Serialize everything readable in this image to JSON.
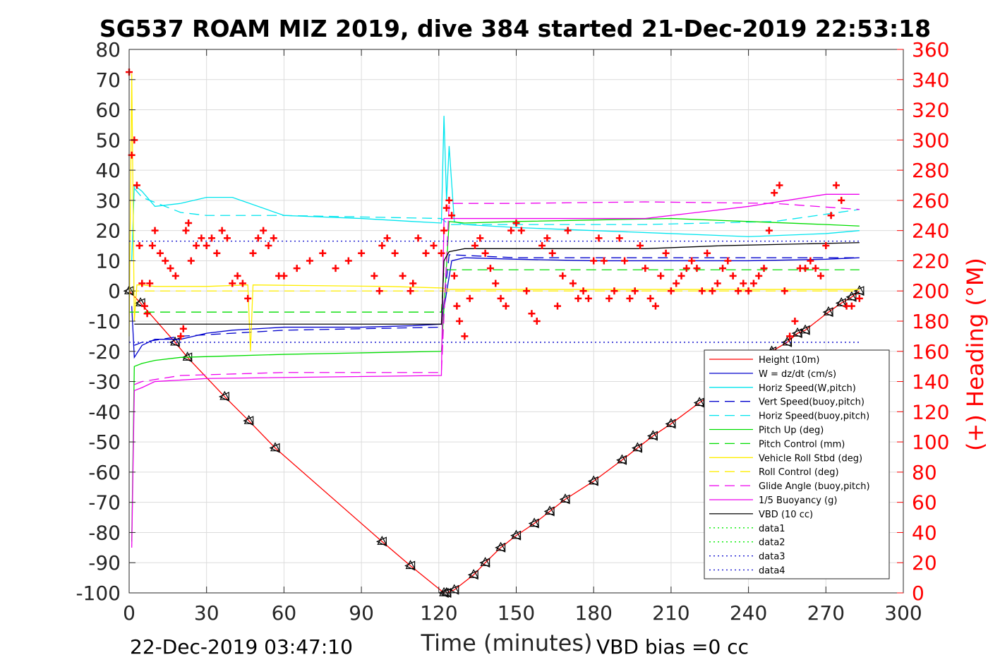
{
  "chart_data": {
    "type": "line",
    "title": "SG537 ROAM MIZ 2019, dive 384 started 21-Dec-2019 22:53:18",
    "xlabel": "Time (minutes)",
    "ylabel": "",
    "y2label": "(+) Heading (°M)",
    "xlim": [
      0,
      300
    ],
    "ylim": [
      -100,
      80
    ],
    "y2lim": [
      0,
      360
    ],
    "xticks": [
      0,
      30,
      60,
      90,
      120,
      150,
      180,
      210,
      240,
      270,
      300
    ],
    "yticks": [
      -100,
      -90,
      -80,
      -70,
      -60,
      -50,
      -40,
      -30,
      -20,
      -10,
      0,
      10,
      20,
      30,
      40,
      50,
      60,
      70,
      80
    ],
    "y2ticks": [
      0,
      20,
      40,
      60,
      80,
      100,
      120,
      140,
      160,
      180,
      200,
      220,
      240,
      260,
      280,
      300,
      320,
      340,
      360
    ],
    "grid": true,
    "legend_position": "lower-right",
    "footer_left": "22-Dec-2019 03:47:10",
    "footer_right": "VBD bias =0 cc",
    "series": [
      {
        "name": "Height (10m)",
        "color": "#ff0000",
        "style": "solid",
        "marker": "triangle",
        "x": [
          0,
          4.4,
          17.8,
          22.6,
          37,
          46.4,
          56.6,
          98,
          109,
          122,
          123,
          126,
          133.5,
          138,
          144,
          150,
          157,
          163,
          169,
          180,
          191,
          197,
          203,
          210,
          221,
          233,
          240,
          249,
          255,
          259,
          262,
          271,
          276,
          280,
          283
        ],
        "y": [
          0,
          -4,
          -17,
          -22,
          -35,
          -43,
          -52,
          -83,
          -91,
          -100,
          -100,
          -99,
          -94,
          -90,
          -85,
          -81,
          -77,
          -73,
          -69,
          -63,
          -56,
          -52,
          -48,
          -44,
          -37,
          -30,
          -26,
          -20,
          -17,
          -14,
          -13,
          -7,
          -4,
          -2,
          0
        ]
      },
      {
        "name": "W = dz/dt (cm/s)",
        "color": "#0000cc",
        "style": "solid",
        "x": [
          1,
          2,
          5,
          10,
          20,
          30,
          40,
          60,
          90,
          110,
          121,
          125,
          130,
          150,
          180,
          210,
          240,
          270,
          283
        ],
        "y": [
          -5,
          -22,
          -18,
          -16,
          -16,
          -14,
          -13,
          -12,
          -12,
          -11.5,
          -11,
          10,
          11,
          10.5,
          10,
          10,
          10,
          10.5,
          11
        ]
      },
      {
        "name": "Horiz Speed(W,pitch)",
        "color": "#00e5ee",
        "style": "solid",
        "x": [
          1,
          2,
          5,
          10,
          20,
          30,
          40,
          60,
          90,
          110,
          121,
          122,
          123,
          124,
          126,
          130,
          150,
          180,
          210,
          240,
          270,
          283
        ],
        "y": [
          10,
          35,
          33,
          28,
          29,
          31,
          31,
          25,
          24,
          23,
          22.5,
          58,
          30,
          48,
          23,
          22,
          21,
          20,
          19,
          18,
          19,
          20
        ]
      },
      {
        "name": "Vert Speed(buoy,pitch)",
        "color": "#0000cc",
        "style": "dashed",
        "x": [
          2,
          5,
          20,
          60,
          121,
          124,
          150,
          200,
          250,
          283
        ],
        "y": [
          -18,
          -17,
          -15,
          -13,
          -12,
          12,
          11,
          11,
          11,
          11
        ]
      },
      {
        "name": "Horiz Speed(buoy,pitch)",
        "color": "#00e5ee",
        "style": "dashed",
        "x": [
          2,
          5,
          20,
          30,
          60,
          121,
          124,
          150,
          200,
          250,
          283
        ],
        "y": [
          34,
          31,
          26,
          25,
          25,
          24,
          22,
          22,
          22,
          23,
          27
        ]
      },
      {
        "name": "Pitch Up (deg)",
        "color": "#00dd00",
        "style": "solid",
        "x": [
          1,
          2,
          5,
          10,
          20,
          40,
          60,
          90,
          121,
          124,
          130,
          150,
          180,
          210,
          240,
          270,
          283
        ],
        "y": [
          -83,
          -25,
          -24,
          -23,
          -22,
          -21.5,
          -21,
          -20.5,
          -20,
          23,
          22.5,
          23,
          23.5,
          24,
          23,
          22,
          21.5
        ]
      },
      {
        "name": "Pitch Control (mm)",
        "color": "#00dd00",
        "style": "dashed",
        "x": [
          0,
          121,
          122,
          283
        ],
        "y": [
          -7,
          -7,
          7,
          7
        ]
      },
      {
        "name": "Vehicle Roll Stbd (deg)",
        "color": "#ffee00",
        "style": "solid",
        "x": [
          0,
          1,
          2,
          3,
          5,
          10,
          30,
          46,
          47,
          48,
          100,
          121,
          124,
          150,
          180,
          210,
          240,
          270,
          283
        ],
        "y": [
          -15,
          72,
          -10,
          2,
          2,
          1.5,
          1.5,
          2,
          -20,
          2,
          1.5,
          1,
          0.5,
          0.5,
          0.5,
          0.5,
          0.5,
          0.5,
          0.5
        ]
      },
      {
        "name": "Roll Control (deg)",
        "color": "#ffee00",
        "style": "dashed",
        "x": [
          0,
          283
        ],
        "y": [
          0,
          0
        ]
      },
      {
        "name": "Glide Angle (buoy,pitch)",
        "color": "#ee00ee",
        "style": "dashed",
        "x": [
          2,
          5,
          20,
          60,
          121,
          124,
          150,
          200,
          250,
          283
        ],
        "y": [
          -31,
          -30,
          -28,
          -27,
          -27,
          29,
          29,
          29.5,
          29,
          27
        ]
      },
      {
        "name": "1/5 Buoyancy (g)",
        "color": "#ee00ee",
        "style": "solid",
        "x": [
          1,
          2,
          5,
          10,
          30,
          121,
          122,
          200,
          220,
          240,
          270,
          283
        ],
        "y": [
          -85,
          -33,
          -32,
          -30,
          -29,
          -28,
          24,
          24,
          26,
          28,
          32,
          32
        ]
      },
      {
        "name": "VBD (10 cc)",
        "color": "#000000",
        "style": "solid",
        "x": [
          2,
          121,
          122,
          124,
          130,
          200,
          230,
          283
        ],
        "y": [
          -11,
          -11,
          10,
          13,
          14,
          14,
          15,
          16
        ]
      },
      {
        "name": "data1",
        "color": "#00ee00",
        "style": "dotted",
        "x": [],
        "y": []
      },
      {
        "name": "data2",
        "color": "#00ee00",
        "style": "dotted",
        "x": [],
        "y": []
      },
      {
        "name": "data3",
        "color": "#0000cc",
        "style": "dotted",
        "x": [
          0,
          283
        ],
        "y": [
          -17,
          -17
        ]
      },
      {
        "name": "data4",
        "color": "#0000cc",
        "style": "dotted",
        "x": [
          0,
          283
        ],
        "y": [
          16.5,
          16.5
        ]
      },
      {
        "name": "(+) Heading",
        "axis": "right",
        "color": "#ff0000",
        "style": "marker",
        "marker": "plus",
        "x": [
          0,
          1,
          2,
          3,
          4,
          5,
          6,
          7,
          8,
          9,
          10,
          12,
          14,
          16,
          18,
          20,
          21,
          22,
          23,
          24,
          26,
          28,
          30,
          32,
          34,
          36,
          38,
          40,
          42,
          44,
          46,
          48,
          50,
          52,
          54,
          56,
          58,
          60,
          65,
          70,
          75,
          80,
          85,
          90,
          95,
          97,
          98,
          100,
          103,
          106,
          109,
          110,
          112,
          115,
          118,
          121,
          122,
          123,
          124,
          125,
          126,
          127,
          128,
          130,
          132,
          134,
          136,
          138,
          140,
          142,
          144,
          146,
          148,
          150,
          152,
          154,
          156,
          158,
          160,
          162,
          164,
          166,
          168,
          170,
          172,
          174,
          176,
          178,
          180,
          182,
          184,
          186,
          188,
          190,
          192,
          194,
          196,
          198,
          200,
          202,
          204,
          206,
          208,
          210,
          212,
          214,
          216,
          218,
          220,
          222,
          224,
          226,
          228,
          230,
          232,
          234,
          236,
          238,
          240,
          242,
          244,
          246,
          248,
          250,
          252,
          254,
          256,
          258,
          260,
          262,
          264,
          266,
          268,
          270,
          272,
          274,
          276,
          278,
          280,
          283
        ],
        "y": [
          345,
          290,
          300,
          270,
          230,
          205,
          190,
          185,
          205,
          230,
          240,
          225,
          220,
          215,
          210,
          170,
          175,
          240,
          245,
          220,
          230,
          235,
          230,
          235,
          225,
          240,
          235,
          205,
          210,
          205,
          195,
          225,
          235,
          240,
          230,
          235,
          210,
          210,
          215,
          220,
          225,
          215,
          220,
          225,
          210,
          200,
          230,
          235,
          225,
          210,
          200,
          205,
          235,
          225,
          230,
          225,
          240,
          255,
          260,
          250,
          210,
          190,
          180,
          170,
          195,
          230,
          235,
          225,
          215,
          205,
          195,
          190,
          240,
          245,
          240,
          200,
          185,
          180,
          230,
          235,
          225,
          190,
          210,
          240,
          205,
          195,
          200,
          195,
          220,
          235,
          220,
          195,
          200,
          235,
          220,
          195,
          200,
          230,
          215,
          195,
          190,
          210,
          225,
          200,
          205,
          210,
          215,
          220,
          215,
          200,
          225,
          200,
          205,
          215,
          220,
          210,
          200,
          205,
          200,
          205,
          210,
          215,
          240,
          265,
          270,
          200,
          170,
          180,
          215,
          215,
          220,
          215,
          210,
          230,
          250,
          270,
          260,
          190,
          190,
          195
        ]
      }
    ]
  }
}
